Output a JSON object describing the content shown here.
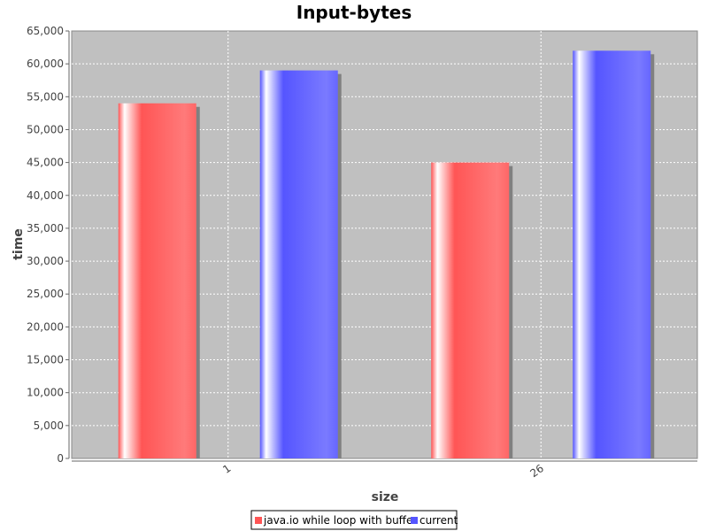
{
  "chart_data": {
    "type": "bar",
    "title": "Input-bytes",
    "xlabel": "size",
    "ylabel": "time",
    "categories": [
      "1",
      "26"
    ],
    "series": [
      {
        "name": "java.io while loop with buffer",
        "values": [
          54000,
          45000
        ],
        "color": "#ff5555"
      },
      {
        "name": "current",
        "values": [
          59000,
          62000
        ],
        "color": "#5555ff"
      }
    ],
    "ylim": [
      0,
      65000
    ],
    "yticks": [
      0,
      5000,
      10000,
      15000,
      20000,
      25000,
      30000,
      35000,
      40000,
      45000,
      50000,
      55000,
      60000,
      65000
    ],
    "ytick_labels": [
      "0",
      "5,000",
      "10,000",
      "15,000",
      "20,000",
      "25,000",
      "30,000",
      "35,000",
      "40,000",
      "45,000",
      "50,000",
      "55,000",
      "60,000",
      "65,000"
    ],
    "grid": true,
    "legend_position": "bottom",
    "plot_background": "#c0c0c0"
  }
}
